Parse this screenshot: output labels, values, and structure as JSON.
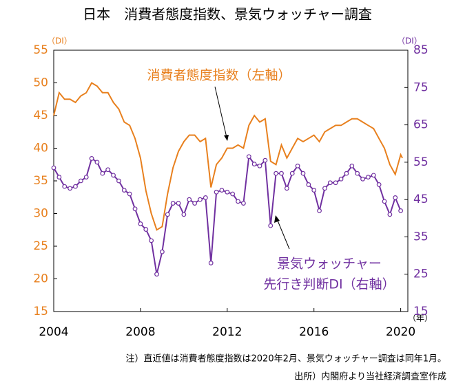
{
  "chart_data": {
    "type": "line",
    "title": "日本　消費者態度指数、景気ウォッチャー調査",
    "y_unit": "（DI）",
    "y2_unit": "（DI）",
    "x_unit": "（年）",
    "x": [
      2004.0,
      2004.25,
      2004.5,
      2004.75,
      2005.0,
      2005.25,
      2005.5,
      2005.75,
      2006.0,
      2006.25,
      2006.5,
      2006.75,
      2007.0,
      2007.25,
      2007.5,
      2007.75,
      2008.0,
      2008.25,
      2008.5,
      2008.75,
      2009.0,
      2009.25,
      2009.5,
      2009.75,
      2010.0,
      2010.25,
      2010.5,
      2010.75,
      2011.0,
      2011.25,
      2011.5,
      2011.75,
      2012.0,
      2012.25,
      2012.5,
      2012.75,
      2013.0,
      2013.25,
      2013.5,
      2013.75,
      2014.0,
      2014.25,
      2014.5,
      2014.75,
      2015.0,
      2015.25,
      2015.5,
      2015.75,
      2016.0,
      2016.25,
      2016.5,
      2016.75,
      2017.0,
      2017.25,
      2017.5,
      2017.75,
      2018.0,
      2018.25,
      2018.5,
      2018.75,
      2019.0,
      2019.25,
      2019.5,
      2019.75,
      2020.0,
      2020.08
    ],
    "series": [
      {
        "label_lines": [
          "消費者態度指数（左軸）"
        ],
        "color": "#e8801e",
        "axis": "y",
        "markers": false,
        "values": [
          45,
          48.5,
          47.5,
          47.5,
          47,
          48,
          48.5,
          50,
          49.5,
          48.5,
          48.5,
          47,
          46,
          44,
          43.5,
          41.5,
          38.5,
          33.5,
          30,
          27.5,
          28,
          33,
          37,
          39.5,
          41,
          42,
          42,
          41,
          41.5,
          34,
          37.5,
          38.5,
          40,
          40,
          40.5,
          40,
          43.5,
          45,
          44,
          44.5,
          38,
          37.5,
          40.5,
          38.5,
          40,
          41.5,
          41,
          41.5,
          42,
          41,
          42.5,
          43,
          43.5,
          43.5,
          44,
          44.5,
          44.5,
          44,
          43.5,
          43,
          41.5,
          40,
          37.5,
          36,
          39,
          38.5
        ]
      },
      {
        "label_lines": [
          "景気ウォッチャー",
          "先行き判断DI（右軸）"
        ],
        "color": "#7030a0",
        "axis": "y2",
        "markers": true,
        "values": [
          53.5,
          51,
          48.5,
          48,
          48.5,
          50,
          51,
          56,
          55,
          52,
          53,
          51.5,
          50,
          47.5,
          46.5,
          42.5,
          38.5,
          37,
          34,
          25,
          31,
          41,
          44,
          44,
          41,
          45,
          44,
          45,
          45.5,
          28,
          47,
          47.5,
          47,
          46.5,
          44.5,
          44,
          56.5,
          54.5,
          54,
          55.5,
          38,
          52,
          52,
          48,
          52,
          54,
          52,
          49,
          47.5,
          42,
          48,
          49.5,
          49.5,
          50.5,
          52,
          54,
          52,
          50.5,
          51,
          51.5,
          49,
          44.5,
          41,
          45.5,
          42,
          null
        ]
      }
    ],
    "xlim": [
      2004,
      2020.33
    ],
    "xticks": [
      2004,
      2008,
      2012,
      2016,
      2020
    ],
    "ylim": [
      15,
      55
    ],
    "yticks": [
      15,
      20,
      25,
      30,
      35,
      40,
      45,
      50,
      55
    ],
    "y2lim": [
      15,
      85
    ],
    "y2ticks": [
      15,
      25,
      35,
      45,
      55,
      65,
      75,
      85
    ],
    "notes": [
      "注）直近値は消費者態度指数は2020年2月、景気ウォッチャー調査は同年1月。",
      "出所）内閣府より当社経済調査室作成"
    ]
  }
}
